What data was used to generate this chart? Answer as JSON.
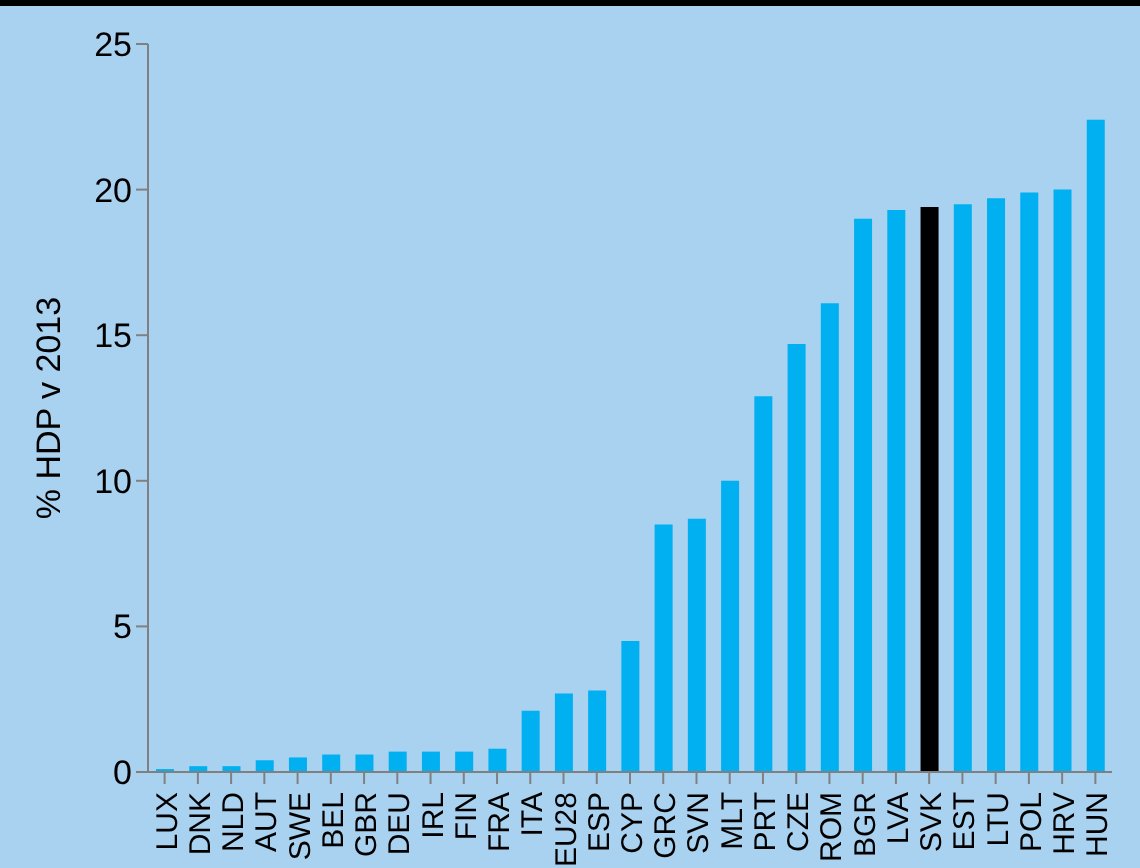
{
  "chart_data": {
    "type": "bar",
    "ylabel": "%  HDP v 2013",
    "categories": [
      "LUX",
      "DNK",
      "NLD",
      "AUT",
      "SWE",
      "BEL",
      "GBR",
      "DEU",
      "IRL",
      "FIN",
      "FRA",
      "ITA",
      "EU28",
      "ESP",
      "CYP",
      "GRC",
      "SVN",
      "MLT",
      "PRT",
      "CZE",
      "ROM",
      "BGR",
      "LVA",
      "SVK",
      "EST",
      "LTU",
      "POL",
      "HRV",
      "HUN"
    ],
    "values": [
      0.1,
      0.2,
      0.2,
      0.4,
      0.5,
      0.6,
      0.6,
      0.7,
      0.7,
      0.7,
      0.8,
      2.1,
      2.7,
      2.8,
      4.5,
      8.5,
      8.7,
      10.0,
      12.9,
      14.7,
      16.1,
      19.0,
      19.3,
      19.4,
      19.5,
      19.7,
      19.9,
      20.0,
      22.4
    ],
    "colors": [
      "#00b0f0",
      "#00b0f0",
      "#00b0f0",
      "#00b0f0",
      "#00b0f0",
      "#00b0f0",
      "#00b0f0",
      "#00b0f0",
      "#00b0f0",
      "#00b0f0",
      "#00b0f0",
      "#00b0f0",
      "#00b0f0",
      "#00b0f0",
      "#00b0f0",
      "#00b0f0",
      "#00b0f0",
      "#00b0f0",
      "#00b0f0",
      "#00b0f0",
      "#00b0f0",
      "#00b0f0",
      "#00b0f0",
      "#000000",
      "#00b0f0",
      "#00b0f0",
      "#00b0f0",
      "#00b0f0",
      "#00b0f0"
    ],
    "ylim": [
      0,
      25
    ],
    "yticks": [
      0,
      5,
      10,
      15,
      20,
      25
    ],
    "grid": false,
    "legend": false
  }
}
